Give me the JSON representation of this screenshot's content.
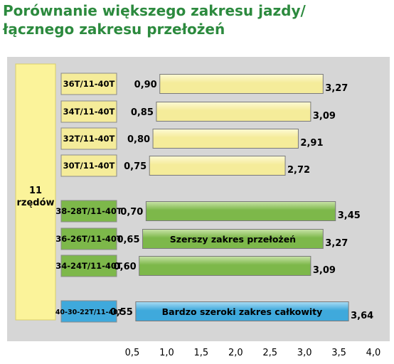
{
  "chart_data": {
    "type": "bar",
    "title": [
      "Porównanie większego zakresu jazdy/",
      "łącznego zakresu przełożeń"
    ],
    "group_label": [
      "11",
      "rzędów"
    ],
    "x_ticks": [
      "0,5",
      "1,0",
      "1,5",
      "2,0",
      "2,5",
      "3,0",
      "3,5",
      "4,0"
    ],
    "xlim": [
      0.5,
      4.0
    ],
    "colors": {
      "yellow": "#f5ec9a",
      "yellow_light": "#fdf9d4",
      "green": "#7db84a",
      "green_light": "#c9e3a8",
      "blue": "#3fa9dc",
      "blue_light": "#a9dcf4",
      "panel": "#d6d6d6",
      "group_box": "#fbf39a",
      "title": "#2c8a3e"
    },
    "bars": [
      {
        "label": "36T/11-40T",
        "start": 0.9,
        "end": 3.27,
        "start_label": "0,90",
        "end_label": "3,27",
        "color": "yellow",
        "text": ""
      },
      {
        "label": "34T/11-40T",
        "start": 0.85,
        "end": 3.09,
        "start_label": "0,85",
        "end_label": "3,09",
        "color": "yellow",
        "text": ""
      },
      {
        "label": "32T/11-40T",
        "start": 0.8,
        "end": 2.91,
        "start_label": "0,80",
        "end_label": "2,91",
        "color": "yellow",
        "text": ""
      },
      {
        "label": "30T/11-40T",
        "start": 0.75,
        "end": 2.72,
        "start_label": "0,75",
        "end_label": "2,72",
        "color": "yellow",
        "text": ""
      },
      {
        "label": "38-28T/11-40T",
        "start": 0.7,
        "end": 3.45,
        "start_label": "0,70",
        "end_label": "3,45",
        "color": "green",
        "text": ""
      },
      {
        "label": "36-26T/11-40T",
        "start": 0.65,
        "end": 3.27,
        "start_label": "0,65",
        "end_label": "3,27",
        "color": "green",
        "text": "Szerszy zakres przełożeń"
      },
      {
        "label": "34-24T/11-40T",
        "start": 0.6,
        "end": 3.09,
        "start_label": "0,60",
        "end_label": "3,09",
        "color": "green",
        "text": ""
      },
      {
        "label": "40-30-22T/11-40T",
        "start": 0.55,
        "end": 3.64,
        "start_label": "0,55",
        "end_label": "3,64",
        "color": "blue",
        "text": "Bardzo szeroki zakres całkowity"
      }
    ]
  }
}
